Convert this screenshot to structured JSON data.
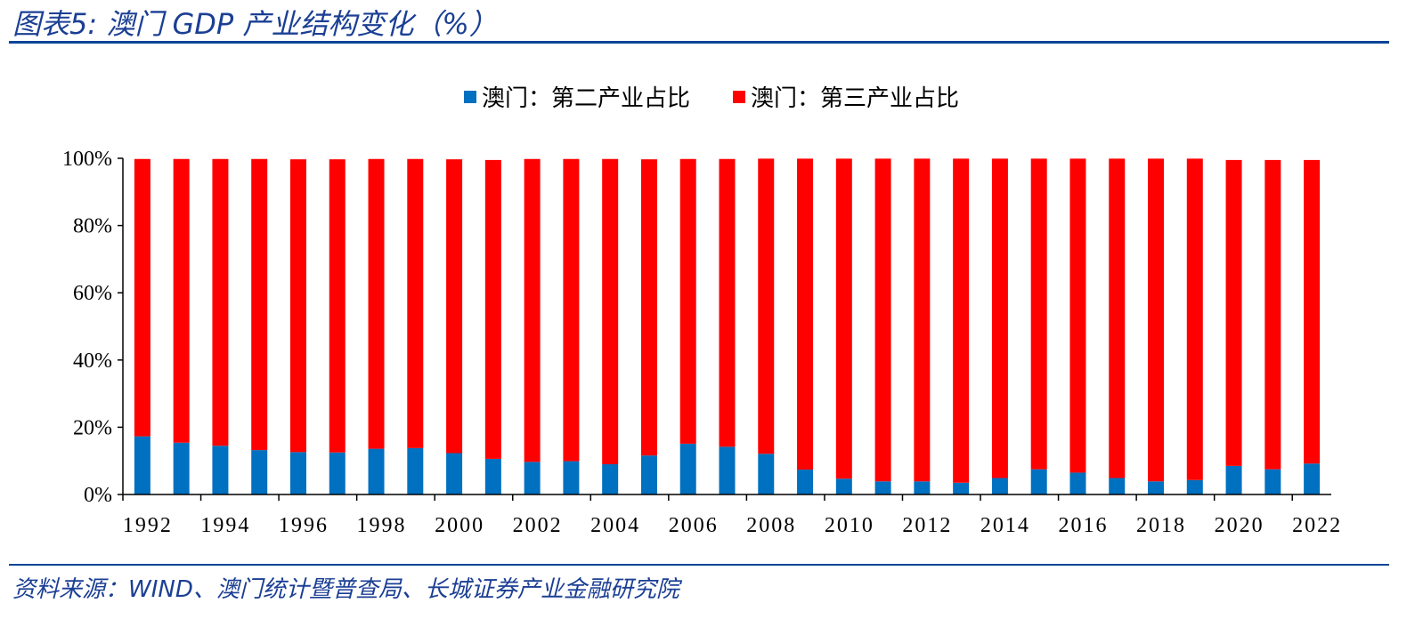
{
  "header": {
    "title": "图表5:  澳门 GDP 产业结构变化（%）"
  },
  "footer": {
    "source": "资料来源：WIND、澳门统计暨普查局、长城证券产业金融研究院"
  },
  "colors": {
    "secondary": "#0070C0",
    "tertiary": "#FF0000",
    "title": "#1b3f94"
  },
  "chart_data": {
    "type": "bar",
    "stacked": true,
    "categories": [
      "1992",
      "1993",
      "1994",
      "1995",
      "1996",
      "1997",
      "1998",
      "1999",
      "2000",
      "2001",
      "2002",
      "2003",
      "2004",
      "2005",
      "2006",
      "2007",
      "2008",
      "2009",
      "2010",
      "2011",
      "2012",
      "2013",
      "2014",
      "2015",
      "2016",
      "2017",
      "2018",
      "2019",
      "2020",
      "2021",
      "2022"
    ],
    "x_tick_labels": [
      "1992",
      "1994",
      "1996",
      "1998",
      "2000",
      "2002",
      "2004",
      "2006",
      "2008",
      "2010",
      "2012",
      "2014",
      "2016",
      "2018",
      "2020",
      "2022"
    ],
    "y_tick_labels": [
      "0%",
      "20%",
      "40%",
      "60%",
      "80%",
      "100%"
    ],
    "ylim": [
      0,
      100
    ],
    "legend_position": "top",
    "grid": false,
    "series": [
      {
        "name": "澳门：第二产业占比",
        "color": "#0070C0",
        "values": [
          17.3,
          15.4,
          14.5,
          13.2,
          12.6,
          12.5,
          13.6,
          13.8,
          12.3,
          10.6,
          9.7,
          9.9,
          9.0,
          11.6,
          15.1,
          14.2,
          12.1,
          7.4,
          4.7,
          3.9,
          3.9,
          3.5,
          4.9,
          7.5,
          6.5,
          4.9,
          3.9,
          4.3,
          8.5,
          7.5,
          9.2
        ]
      },
      {
        "name": "澳门：第三产业占比",
        "color": "#FF0000",
        "values": [
          82.5,
          84.4,
          85.3,
          86.6,
          87.1,
          87.2,
          86.2,
          86.0,
          87.4,
          88.9,
          90.1,
          89.9,
          90.8,
          88.1,
          84.7,
          85.6,
          87.8,
          92.5,
          95.2,
          96.0,
          96.0,
          96.4,
          95.0,
          92.4,
          93.4,
          95.0,
          96.0,
          95.6,
          91.0,
          92.0,
          90.3
        ]
      }
    ]
  }
}
